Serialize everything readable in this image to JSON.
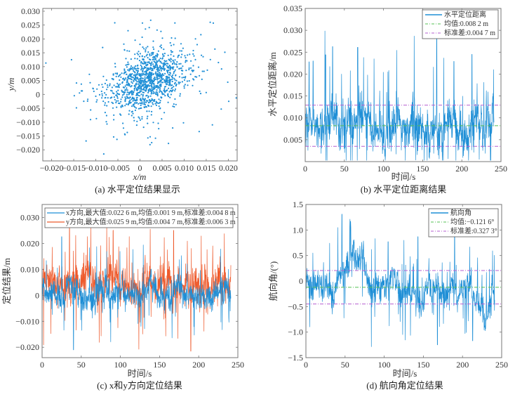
{
  "chart_data": [
    {
      "id": "a",
      "type": "scatter",
      "caption": "(a) 水平定位结果显示",
      "xlabel": "x/m",
      "ylabel": "y/m",
      "xlim": [
        -0.022,
        0.022
      ],
      "ylim": [
        -0.024,
        0.031
      ],
      "xticks": [
        -0.02,
        -0.015,
        -0.01,
        -0.005,
        0,
        0.005,
        0.01,
        0.015,
        0.02
      ],
      "xtick_labels": [
        "-0.020",
        "-0.015",
        "-0.010",
        "-0.005",
        "0",
        "0.005",
        "0.010",
        "0.015",
        "0.020"
      ],
      "yticks": [
        -0.02,
        -0.015,
        -0.01,
        -0.005,
        0,
        0.005,
        0.01,
        0.015,
        0.02,
        0.025,
        0.03
      ],
      "ytick_labels": [
        "-0.020",
        "-0.015",
        "-0.010",
        "-0.005",
        "0",
        "0.005",
        "0.010",
        "0.015",
        "0.020",
        "0.025",
        "0.030"
      ],
      "color": "#1f8fd6",
      "point_count": 1200,
      "center": [
        0.0019,
        0.0047
      ],
      "std": [
        0.0048,
        0.0063
      ],
      "points": [
        [
          -0.0213,
          0.0113
        ],
        [
          -0.0155,
          0.0125
        ],
        [
          -0.0137,
          0.0005
        ],
        [
          -0.0112,
          -0.0091
        ],
        [
          -0.0082,
          -0.0215
        ],
        [
          0.0159,
          0.026
        ],
        [
          0.0166,
          0.0257
        ],
        [
          0.0218,
          -0.0013
        ],
        [
          0.0164,
          -0.011
        ],
        [
          -0.0057,
          0.0258
        ],
        [
          0.0184,
          -0.0053
        ],
        [
          0.0134,
          -0.0134
        ],
        [
          -0.0122,
          -0.0168
        ],
        [
          0.0201,
          -0.0025
        ],
        [
          0.0005,
          0.0206
        ]
      ]
    },
    {
      "id": "b",
      "type": "line",
      "caption": "(b) 水平定位距离结果",
      "xlabel": "时间/s",
      "ylabel": "水平定位距离/m",
      "xlim": [
        0,
        250
      ],
      "ylim": [
        0,
        0.035
      ],
      "xticks": [
        0,
        50,
        100,
        150,
        200,
        250
      ],
      "xtick_labels": [
        "0",
        "50",
        "100",
        "150",
        "200",
        "250"
      ],
      "yticks": [
        0.005,
        0.01,
        0.015,
        0.02,
        0.025,
        0.03,
        0.035
      ],
      "ytick_labels": [
        "0.005",
        "0.010",
        "0.015",
        "0.020",
        "0.025",
        "0.030",
        "0.035"
      ],
      "legend_position": "top-right",
      "series": [
        {
          "name": "水平定位距离",
          "color": "#1f8fd6",
          "style": "solid",
          "duration": 241,
          "mean": 0.0082,
          "peaks": [
            [
              5,
              0.0228
            ],
            [
              10,
              0.023
            ],
            [
              26,
              0.0244
            ],
            [
              35,
              0.0263
            ],
            [
              67,
              0.0261
            ],
            [
              168,
              0.0295
            ],
            [
              190,
              0.0229
            ],
            [
              213,
              0.0245
            ]
          ]
        },
        {
          "name": "均值:0.008 2 m",
          "color": "#55c155",
          "style": "dashdot",
          "value": 0.0082
        },
        {
          "name": "标准差:0.004 7 m",
          "color": "#b65fd0",
          "style": "dashdot",
          "values": [
            0.0129,
            0.0035
          ]
        }
      ]
    },
    {
      "id": "c",
      "type": "line",
      "caption": "(c) x和y方向定位结果",
      "xlabel": "时间/s",
      "ylabel": "定位结果/m",
      "xlim": [
        0,
        250
      ],
      "ylim": [
        -0.024,
        0.035
      ],
      "xticks": [
        0,
        50,
        100,
        150,
        200,
        250
      ],
      "xtick_labels": [
        "0",
        "50",
        "100",
        "150",
        "200",
        "250"
      ],
      "yticks": [
        -0.02,
        -0.01,
        0,
        0.01,
        0.02,
        0.03
      ],
      "ytick_labels": [
        "-0.020",
        "-0.010",
        "0",
        "0.010",
        "0.020",
        "0.030"
      ],
      "legend_position": "top",
      "series": [
        {
          "name": "x方向,最大值:0.022 6 m,均值:0.001 9 m,标准差:0.004 8 m",
          "color": "#1f8fd6",
          "style": "solid",
          "max": 0.0226,
          "mean": 0.0019,
          "std": 0.0048,
          "min": -0.021
        },
        {
          "name": "y方向,最大值:0.025 9 m,均值:0.004 7 m,标准差:0.006 3 m",
          "color": "#ee5a2c",
          "style": "solid",
          "max": 0.0259,
          "mean": 0.0047,
          "std": 0.0063,
          "min": -0.0215
        }
      ]
    },
    {
      "id": "d",
      "type": "line",
      "caption": "(d) 航向角定位结果",
      "xlabel": "时间/s",
      "ylabel": "航向角/(°)",
      "xlim": [
        0,
        250
      ],
      "ylim": [
        -1.5,
        1.5
      ],
      "xticks": [
        0,
        50,
        100,
        150,
        200,
        250
      ],
      "xtick_labels": [
        "0",
        "50",
        "100",
        "150",
        "200",
        "250"
      ],
      "yticks": [
        -1.5,
        -1.0,
        -0.5,
        0,
        0.5,
        1.0,
        1.5
      ],
      "ytick_labels": [
        "-1.5",
        "-1.0",
        "-0.5",
        "0",
        "0.5",
        "1.0",
        "1.5"
      ],
      "legend_position": "top-right",
      "series": [
        {
          "name": "航向角",
          "color": "#1f8fd6",
          "style": "solid",
          "duration": 241,
          "mean": -0.1216,
          "peaks": [
            [
              46,
              1.31
            ],
            [
              57,
              1.17
            ],
            [
              105,
              0.77
            ],
            [
              143,
              0.87
            ],
            [
              168,
              -1.25
            ],
            [
              190,
              1.0
            ],
            [
              213,
              -1.17
            ]
          ]
        },
        {
          "name": "均值:−0.121 6°",
          "color": "#55c155",
          "style": "dashdot",
          "value": -0.1216
        },
        {
          "name": "标准差:0.327 3°",
          "color": "#b65fd0",
          "style": "dashdot",
          "values": [
            0.2057,
            -0.4489
          ]
        }
      ]
    }
  ]
}
